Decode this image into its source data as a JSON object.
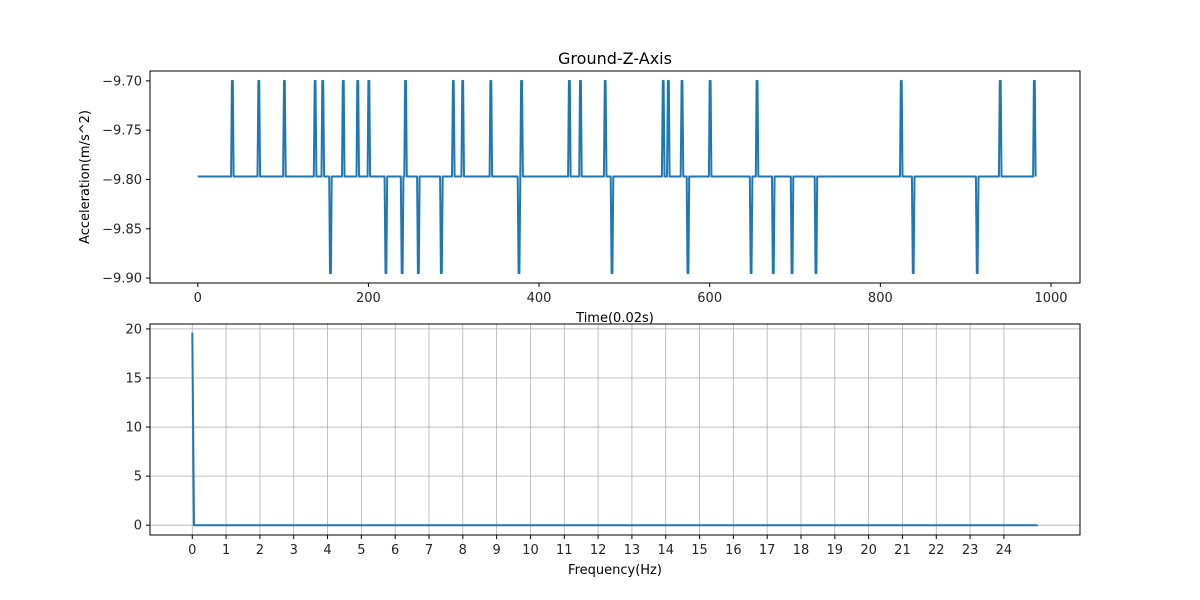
{
  "chart_data": [
    {
      "type": "line",
      "title": "Ground-Z-Axis",
      "xlabel": "Time(0.02s)",
      "ylabel": "Acceleration(m/s^2)",
      "xlim": [
        -56,
        1034
      ],
      "ylim": [
        -9.905,
        -9.69
      ],
      "xticks": [
        0,
        200,
        400,
        600,
        800,
        1000
      ],
      "yticks": [
        -9.7,
        -9.75,
        -9.8,
        -9.85,
        -9.9
      ],
      "ytick_labels": [
        "−9.70",
        "−9.75",
        "−9.80",
        "−9.85",
        "−9.90"
      ],
      "grid": false,
      "baseline": -9.797,
      "x_end": 982,
      "spikes_up": [
        40,
        71,
        101,
        137,
        146,
        170,
        187,
        200,
        243,
        299,
        310,
        343,
        379,
        435,
        448,
        477,
        545,
        551,
        567,
        600,
        655,
        824,
        940,
        980
      ],
      "spikes_down": [
        155,
        220,
        239,
        258,
        285,
        376,
        485,
        574,
        648,
        674,
        696,
        724,
        838,
        913
      ],
      "up_value": -9.7,
      "down_value": -9.895,
      "color": "#1f77b4"
    },
    {
      "type": "line",
      "title": "",
      "xlabel": "Frequency(Hz)",
      "ylabel": "",
      "xlim": [
        -1.25,
        26.25
      ],
      "ylim": [
        -1,
        20.5
      ],
      "xticks": [
        0,
        1,
        2,
        3,
        4,
        5,
        6,
        7,
        8,
        9,
        10,
        11,
        12,
        13,
        14,
        15,
        16,
        17,
        18,
        19,
        20,
        21,
        22,
        23,
        24
      ],
      "yticks": [
        0,
        5,
        10,
        15,
        20
      ],
      "grid": true,
      "points": [
        [
          0,
          19.6
        ],
        [
          0.05,
          0
        ],
        [
          25,
          0
        ]
      ],
      "color": "#1f77b4"
    }
  ]
}
